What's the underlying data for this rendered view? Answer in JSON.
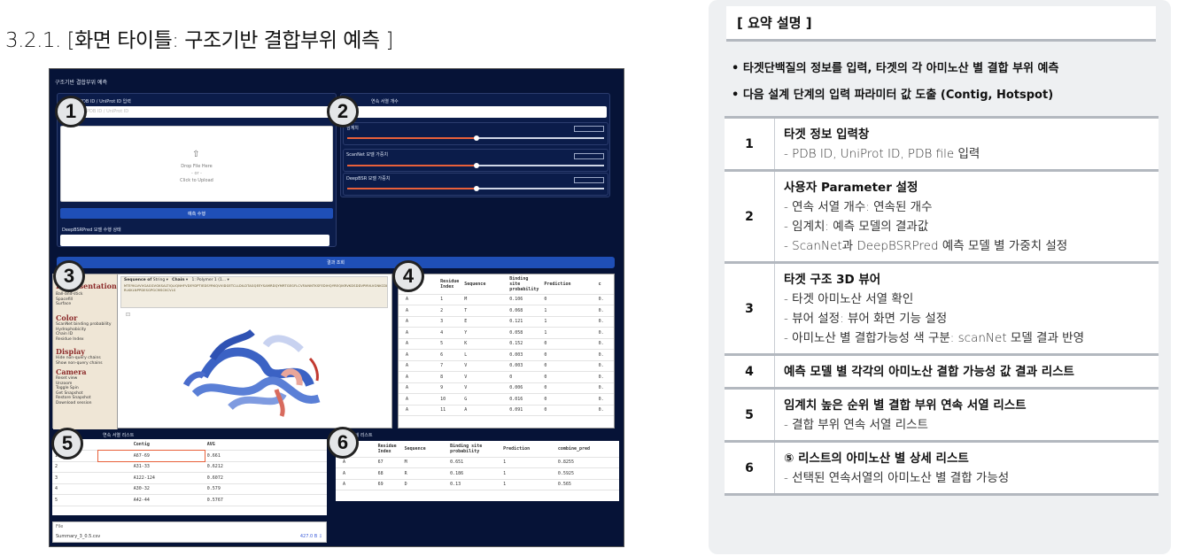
{
  "page_title": "3.2.1. [화면 타이틀: 구조기반 결합부위 예측 ]",
  "app": {
    "title": "구조기반 결합부위 예측",
    "uniprot_label": "PDB ID / UniProt ID 입력",
    "uniprot_placeholder": "PDB ID / UniProt ID",
    "upload_text": "Drop File Here",
    "upload_or": "- or -",
    "upload_click": "Click to Upload",
    "count_label": "연속 서열 개수",
    "threshold_label": "임계치",
    "scannet_label": "ScanNet 모델 가중치",
    "deepbsr_label": "DeepBSR 모델 가중치",
    "run_button": "예측 수행",
    "status_label": "DeepBSRPred 모델 수행 상태",
    "result_button": "결과 조회",
    "seq_label": "Sequence of",
    "seq_mode": "String",
    "chain_label": "Chain",
    "polymer": "1: Polymer 1 (1... ▾",
    "sequence_text_1": "MTEYKLVVVGAGGVGKSALTIQLIQNHFVDEYDPTIEDSYRKQVVIDGETCLLDILDTAGQEEYSAMRDQYMRTGEGFLCVFAINNTKSFEDIHQYREQIKRVKDSDDVPMVLVGNKCDLAARTVESRQAQDLARSYGIPYIETSAKTRQGVEDAFYTLVREIRQH",
    "sequence_text_2": "RLKKLNPPDESGPGCMSCKCVLS",
    "rep_heading": "Representation",
    "rep_items": [
      "Ball-and-stick",
      "Spacefill",
      "Surface"
    ],
    "color_heading": "Color",
    "color_items": [
      "ScanNet binding probability",
      "Hydrophobicity",
      "Chain ID",
      "Residue Index"
    ],
    "display_heading": "Display",
    "display_items": [
      "Hide non-query chains",
      "Show non-query chains"
    ],
    "camera_heading": "Camera",
    "camera_items": [
      "Reset view",
      "Unzoom",
      "Toggle Spin",
      "Get Snapshot",
      "Restore Snapshot",
      "Download session"
    ],
    "list_title": "연속 서열 리스트",
    "detail_title": "상세 리스트",
    "file_label": "File",
    "file_name": "Summary_3_0.5.csv",
    "file_size": "427.0 B ⇩"
  },
  "table4": {
    "headers": [
      "Chain",
      "Residue Index",
      "Sequence",
      "Binding site probability",
      "Prediction",
      "c"
    ],
    "rows": [
      [
        "A",
        "1",
        "M",
        "0.106",
        "0",
        "0."
      ],
      [
        "A",
        "2",
        "T",
        "0.068",
        "1",
        "0."
      ],
      [
        "A",
        "3",
        "E",
        "0.121",
        "1",
        "0."
      ],
      [
        "A",
        "4",
        "Y",
        "0.058",
        "1",
        "0."
      ],
      [
        "A",
        "5",
        "K",
        "0.152",
        "0",
        "0."
      ],
      [
        "A",
        "6",
        "L",
        "0.003",
        "0",
        "0."
      ],
      [
        "A",
        "7",
        "V",
        "0.003",
        "0",
        "0."
      ],
      [
        "A",
        "8",
        "V",
        "0",
        "0",
        "0."
      ],
      [
        "A",
        "9",
        "V",
        "0.006",
        "0",
        "0."
      ],
      [
        "A",
        "10",
        "G",
        "0.016",
        "0",
        "0."
      ],
      [
        "A",
        "11",
        "A",
        "0.091",
        "0",
        "0."
      ]
    ]
  },
  "table5": {
    "headers": [
      "",
      "Contig",
      "AVG"
    ],
    "rows": [
      [
        "1",
        "A67-69",
        "0.661"
      ],
      [
        "2",
        "A31-33",
        "0.6212"
      ],
      [
        "3",
        "A122-124",
        "0.6072"
      ],
      [
        "4",
        "A30-32",
        "0.579"
      ],
      [
        "5",
        "A42-44",
        "0.5767"
      ]
    ]
  },
  "table6": {
    "headers": [
      "Chair",
      "Residue Index",
      "Sequence",
      "Binding site probability",
      "Prediction",
      "combine_pred"
    ],
    "rows": [
      [
        "A",
        "67",
        "M",
        "0.651",
        "1",
        "0.8255"
      ],
      [
        "A",
        "68",
        "R",
        "0.186",
        "1",
        "0.5925"
      ],
      [
        "A",
        "69",
        "D",
        "0.13",
        "1",
        "0.565"
      ]
    ]
  },
  "summary": {
    "title": "[ 요약 설명 ]",
    "bullets": [
      "• 타겟단백질의 정보를 입력, 타겟의 각 아미노산 별 결합 부위 예측",
      "• 다음 설계 단계의 입력 파라미터 값 도출 (Contig, Hotspot)"
    ],
    "rows": [
      {
        "num": "1",
        "head": "타겟 정보 입력창",
        "lines": [
          "- PDB ID, UniProt ID, PDB file 입력"
        ]
      },
      {
        "num": "2",
        "head": "사용자 Parameter 설정",
        "lines": [
          "- 연속 서열 개수: 연속된 개수",
          "- 임계치: 예측 모델의 결과값",
          "- ScanNet과 DeepBSRPred 예측 모델 별 가중치 설정"
        ]
      },
      {
        "num": "3",
        "head": "타겟 구조 3D 뷰어",
        "lines": [
          "- 타겟 아미노산 서열 확인",
          "- 뷰어 설정: 뷰어 화면 기능 설정",
          "- 아미노산 별 결합가능성 색 구분: scanNet 모델 결과 반영"
        ]
      },
      {
        "num": "4",
        "head": "예측 모델 별 각각의 아미노산 결합 가능성 값 결과 리스트",
        "lines": []
      },
      {
        "num": "5",
        "head": "임계치 높은 순위 별 결합 부위 연속 서열 리스트",
        "lines": [
          "- 결합 부위 연속 서열 리스트"
        ]
      },
      {
        "num": "6",
        "head": "⑤ 리스트의 아미노산 별 상세 리스트",
        "lines": [
          "- 선택된 연속서열의 아미노산 별 결합 가능성"
        ]
      }
    ]
  },
  "badges": [
    "1",
    "2",
    "3",
    "4",
    "5",
    "6"
  ],
  "colors": {
    "background": "#061337",
    "accent_button": "#1f4fb7",
    "slider_fill": "#e8603a",
    "summary_bg": "#eef0f2"
  }
}
